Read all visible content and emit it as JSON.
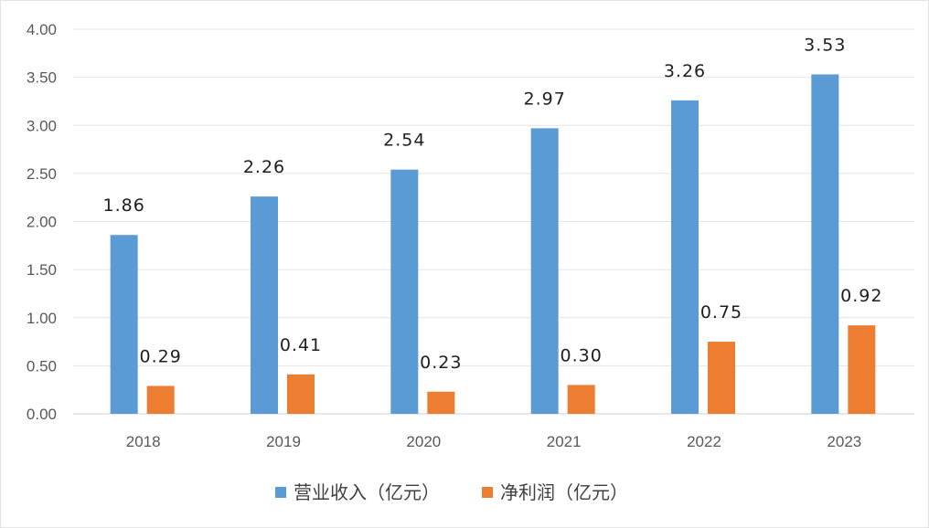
{
  "chart_data": {
    "type": "bar",
    "categories": [
      "2018",
      "2019",
      "2020",
      "2021",
      "2022",
      "2023"
    ],
    "series": [
      {
        "name": "营业收入（亿元）",
        "color": "#5b9bd5",
        "values": [
          1.86,
          2.26,
          2.54,
          2.97,
          3.26,
          3.53
        ],
        "labels": [
          "1.86",
          "2.26",
          "2.54",
          "2.97",
          "3.26",
          "3.53"
        ]
      },
      {
        "name": "净利润（亿元）",
        "color": "#ed7d31",
        "values": [
          0.29,
          0.41,
          0.23,
          0.3,
          0.75,
          0.92
        ],
        "labels": [
          "0.29",
          "0.41",
          "0.23",
          "0.30",
          "0.75",
          "0.92"
        ]
      }
    ],
    "ylim": [
      0,
      4
    ],
    "yticks": [
      "0.00",
      "0.50",
      "1.00",
      "1.50",
      "2.00",
      "2.50",
      "3.00",
      "3.50",
      "4.00"
    ],
    "grid": true,
    "legend": "bottom"
  }
}
